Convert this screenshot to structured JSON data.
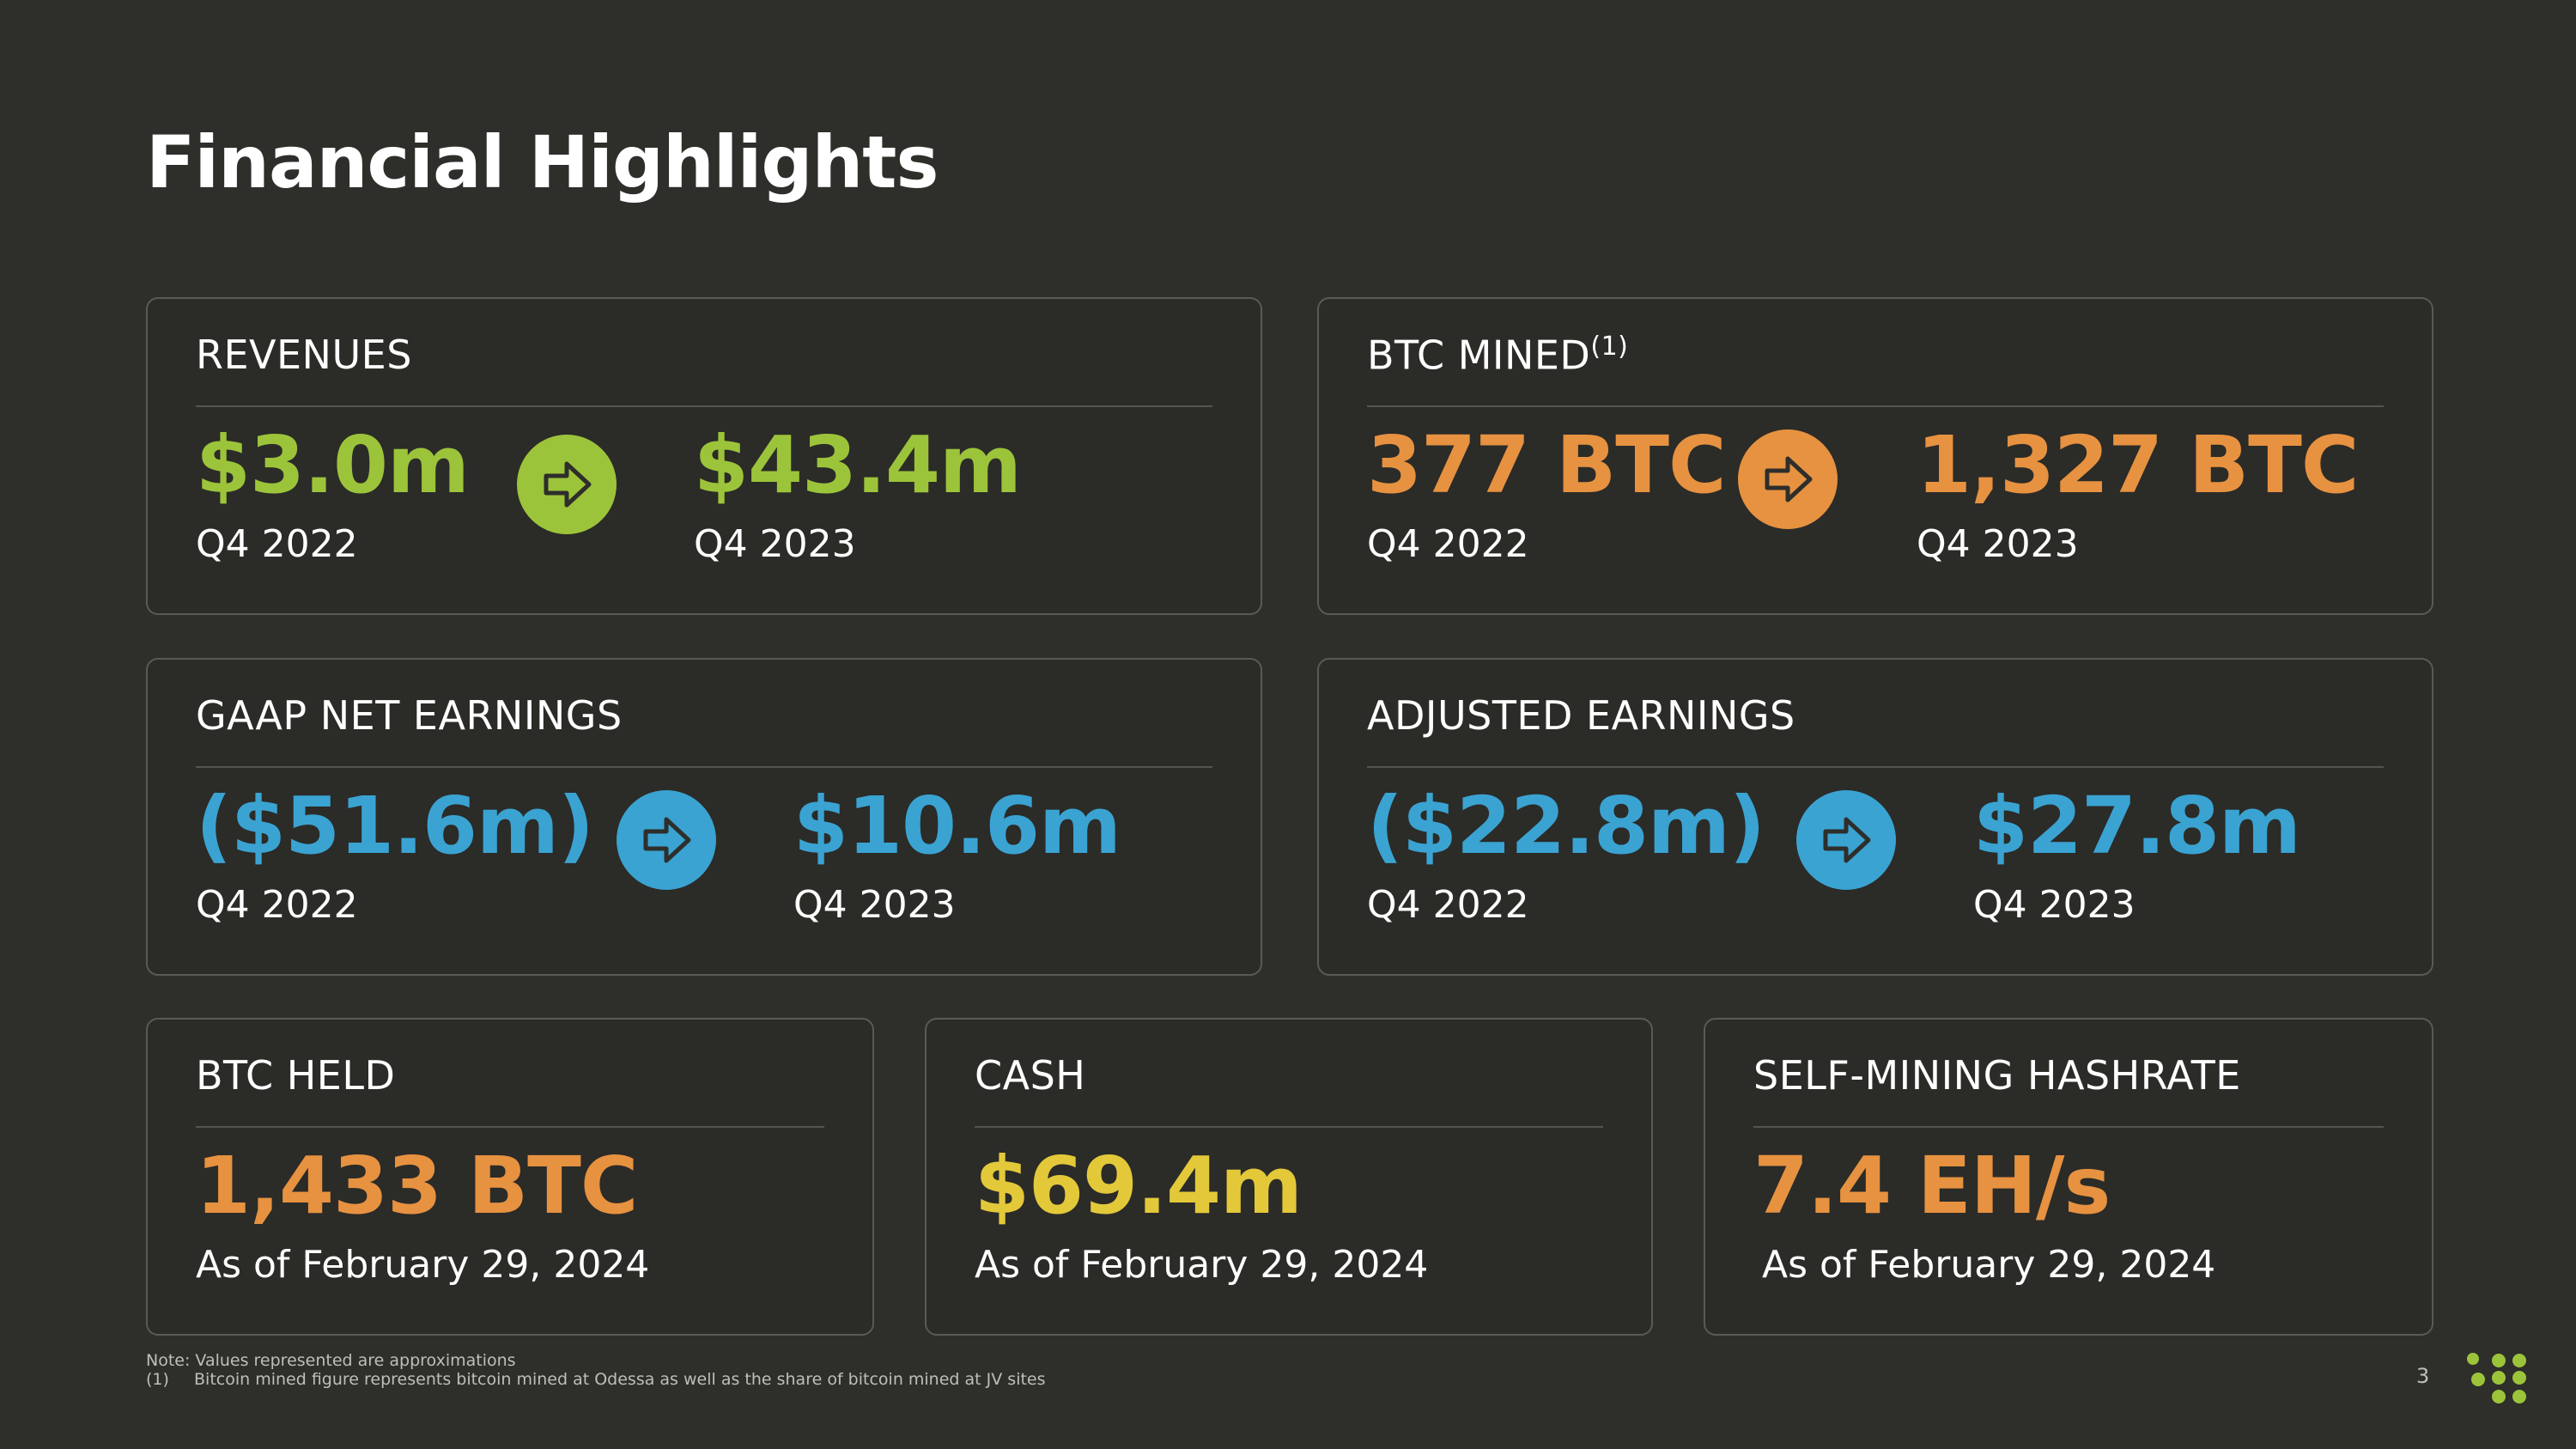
{
  "title": "Financial Highlights",
  "colors": {
    "background": "#2e2e2b",
    "green": "#9cc43a",
    "orange": "#e69240",
    "blue": "#3aa3d2",
    "yellow": "#e3c93a"
  },
  "cards": {
    "revenues": {
      "label": "REVENUES",
      "before_value": "$3.0m",
      "before_period": "Q4 2022",
      "after_value": "$43.4m",
      "after_period": "Q4 2023"
    },
    "btc_mined": {
      "label": "BTC MINED",
      "footnote_marker": "(1)",
      "before_value": "377 BTC",
      "before_period": "Q4 2022",
      "after_value": "1,327 BTC",
      "after_period": "Q4 2023"
    },
    "gaap_net_earnings": {
      "label": "GAAP NET EARNINGS",
      "before_value": "($51.6m)",
      "before_period": "Q4 2022",
      "after_value": "$10.6m",
      "after_period": "Q4 2023"
    },
    "adjusted_earnings": {
      "label": "ADJUSTED EARNINGS",
      "before_value": "($22.8m)",
      "before_period": "Q4 2022",
      "after_value": "$27.8m",
      "after_period": "Q4 2023"
    },
    "btc_held": {
      "label": "BTC HELD",
      "value": "1,433 BTC",
      "as_of": "As of February 29, 2024"
    },
    "cash": {
      "label": "CASH",
      "value": "$69.4m",
      "as_of": "As of February 29, 2024"
    },
    "hashrate": {
      "label": "SELF-MINING HASHRATE",
      "value": "7.4 EH/s",
      "as_of": "As of February 29, 2024"
    }
  },
  "icons": {
    "arrow": "arrow-right-icon",
    "logo": "dot-grid-logo-icon"
  },
  "footer": {
    "note": "Note: Values represented are approximations",
    "footnote_marker": "(1)",
    "footnote_text": "Bitcoin mined figure represents bitcoin mined at Odessa as well as the share of bitcoin mined at JV sites",
    "page_number": "3"
  }
}
